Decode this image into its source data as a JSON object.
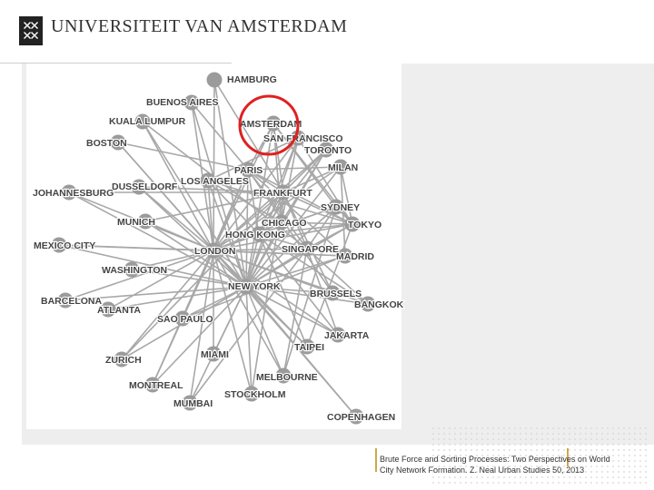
{
  "header": {
    "title": "UNIVERSITEIT VAN AMSTERDAM",
    "logo_icon": "uva-crest-icon"
  },
  "caption": {
    "line1": "Brute Force and Sorting Processes: Two Perspectives on World",
    "line2": "City Network Formation. Z. Neal Urban Studies 50, 2013"
  },
  "colors": {
    "node": "#9b9b9b",
    "edge": "#a8a8a8",
    "highlight": "#e02020",
    "panel": "#eeeeee",
    "accent": "#d2a64a"
  },
  "nodes": [
    {
      "id": "hamburg",
      "label": "HAMBURG"
    },
    {
      "id": "buenos",
      "label": "BUENOS AIRES"
    },
    {
      "id": "kuala",
      "label": "KUALA LUMPUR"
    },
    {
      "id": "amsterdam",
      "label": "AMSTERDAM"
    },
    {
      "id": "sanfran",
      "label": "SAN FRANCISCO"
    },
    {
      "id": "boston",
      "label": "BOSTON"
    },
    {
      "id": "toronto",
      "label": "TORONTO"
    },
    {
      "id": "milan",
      "label": "MILAN"
    },
    {
      "id": "paris",
      "label": "PARIS"
    },
    {
      "id": "dusseldorf",
      "label": "DUSSELDORF"
    },
    {
      "id": "losangeles",
      "label": "LOS ANGELES"
    },
    {
      "id": "johannesburg",
      "label": "JOHANNESBURG"
    },
    {
      "id": "frankfurt",
      "label": "FRANKFURT"
    },
    {
      "id": "sydney",
      "label": "SYDNEY"
    },
    {
      "id": "munich",
      "label": "MUNICH"
    },
    {
      "id": "chicago",
      "label": "CHICAGO"
    },
    {
      "id": "tokyo",
      "label": "TOKYO"
    },
    {
      "id": "hongkong",
      "label": "HONG KONG"
    },
    {
      "id": "mexico",
      "label": "MEXICO CITY"
    },
    {
      "id": "london",
      "label": "LONDON"
    },
    {
      "id": "singapore",
      "label": "SINGAPORE"
    },
    {
      "id": "madrid",
      "label": "MADRID"
    },
    {
      "id": "washington",
      "label": "WASHINGTON"
    },
    {
      "id": "newyork",
      "label": "NEW YORK"
    },
    {
      "id": "brussels",
      "label": "BRUSSELS"
    },
    {
      "id": "barcelona",
      "label": "BARCELONA"
    },
    {
      "id": "bangkok",
      "label": "BANGKOK"
    },
    {
      "id": "atlanta",
      "label": "ATLANTA"
    },
    {
      "id": "saopaulo",
      "label": "SAO PAULO"
    },
    {
      "id": "jakarta",
      "label": "JAKARTA"
    },
    {
      "id": "taipei",
      "label": "TAIPEI"
    },
    {
      "id": "miami",
      "label": "MIAMI"
    },
    {
      "id": "zurich",
      "label": "ZURICH"
    },
    {
      "id": "melbourne",
      "label": "MELBOURNE"
    },
    {
      "id": "montreal",
      "label": "MONTREAL"
    },
    {
      "id": "stockholm",
      "label": "STOCKHOLM"
    },
    {
      "id": "mumbai",
      "label": "MUMBAI"
    },
    {
      "id": "copenhagen",
      "label": "COPENHAGEN"
    }
  ],
  "edges": [
    [
      "hamburg",
      "london"
    ],
    [
      "hamburg",
      "frankfurt"
    ],
    [
      "hamburg",
      "newyork"
    ],
    [
      "buenos",
      "london"
    ],
    [
      "buenos",
      "newyork"
    ],
    [
      "buenos",
      "paris"
    ],
    [
      "kuala",
      "london"
    ],
    [
      "kuala",
      "newyork"
    ],
    [
      "kuala",
      "singapore"
    ],
    [
      "amsterdam",
      "london"
    ],
    [
      "amsterdam",
      "newyork"
    ],
    [
      "amsterdam",
      "paris"
    ],
    [
      "amsterdam",
      "frankfurt"
    ],
    [
      "amsterdam",
      "tokyo"
    ],
    [
      "amsterdam",
      "sydney"
    ],
    [
      "amsterdam",
      "chicago"
    ],
    [
      "sanfran",
      "london"
    ],
    [
      "sanfran",
      "newyork"
    ],
    [
      "sanfran",
      "tokyo"
    ],
    [
      "sanfran",
      "chicago"
    ],
    [
      "sanfran",
      "hongkong"
    ],
    [
      "sanfran",
      "losangeles"
    ],
    [
      "boston",
      "london"
    ],
    [
      "boston",
      "newyork"
    ],
    [
      "boston",
      "paris"
    ],
    [
      "toronto",
      "london"
    ],
    [
      "toronto",
      "newyork"
    ],
    [
      "toronto",
      "chicago"
    ],
    [
      "toronto",
      "frankfurt"
    ],
    [
      "toronto",
      "hongkong"
    ],
    [
      "milan",
      "london"
    ],
    [
      "milan",
      "newyork"
    ],
    [
      "milan",
      "paris"
    ],
    [
      "milan",
      "frankfurt"
    ],
    [
      "milan",
      "madrid"
    ],
    [
      "milan",
      "tokyo"
    ],
    [
      "paris",
      "london"
    ],
    [
      "paris",
      "newyork"
    ],
    [
      "paris",
      "frankfurt"
    ],
    [
      "paris",
      "tokyo"
    ],
    [
      "paris",
      "singapore"
    ],
    [
      "paris",
      "madrid"
    ],
    [
      "paris",
      "hongkong"
    ],
    [
      "dusseldorf",
      "london"
    ],
    [
      "dusseldorf",
      "frankfurt"
    ],
    [
      "dusseldorf",
      "newyork"
    ],
    [
      "losangeles",
      "london"
    ],
    [
      "losangeles",
      "newyork"
    ],
    [
      "losangeles",
      "tokyo"
    ],
    [
      "losangeles",
      "chicago"
    ],
    [
      "losangeles",
      "hongkong"
    ],
    [
      "johannesburg",
      "london"
    ],
    [
      "johannesburg",
      "newyork"
    ],
    [
      "johannesburg",
      "frankfurt"
    ],
    [
      "frankfurt",
      "london"
    ],
    [
      "frankfurt",
      "newyork"
    ],
    [
      "frankfurt",
      "tokyo"
    ],
    [
      "frankfurt",
      "singapore"
    ],
    [
      "frankfurt",
      "hongkong"
    ],
    [
      "frankfurt",
      "chicago"
    ],
    [
      "sydney",
      "london"
    ],
    [
      "sydney",
      "newyork"
    ],
    [
      "sydney",
      "tokyo"
    ],
    [
      "sydney",
      "singapore"
    ],
    [
      "sydney",
      "hongkong"
    ],
    [
      "munich",
      "london"
    ],
    [
      "munich",
      "frankfurt"
    ],
    [
      "munich",
      "newyork"
    ],
    [
      "chicago",
      "london"
    ],
    [
      "chicago",
      "newyork"
    ],
    [
      "chicago",
      "tokyo"
    ],
    [
      "chicago",
      "hongkong"
    ],
    [
      "tokyo",
      "london"
    ],
    [
      "tokyo",
      "newyork"
    ],
    [
      "tokyo",
      "hongkong"
    ],
    [
      "tokyo",
      "singapore"
    ],
    [
      "hongkong",
      "london"
    ],
    [
      "hongkong",
      "newyork"
    ],
    [
      "hongkong",
      "singapore"
    ],
    [
      "mexico",
      "london"
    ],
    [
      "mexico",
      "newyork"
    ],
    [
      "mexico",
      "madrid"
    ],
    [
      "london",
      "newyork"
    ],
    [
      "london",
      "singapore"
    ],
    [
      "london",
      "madrid"
    ],
    [
      "london",
      "brussels"
    ],
    [
      "singapore",
      "newyork"
    ],
    [
      "singapore",
      "jakarta"
    ],
    [
      "singapore",
      "bangkok"
    ],
    [
      "madrid",
      "newyork"
    ],
    [
      "madrid",
      "saopaulo"
    ],
    [
      "washington",
      "london"
    ],
    [
      "washington",
      "newyork"
    ],
    [
      "newyork",
      "brussels"
    ],
    [
      "newyork",
      "saopaulo"
    ],
    [
      "newyork",
      "miami"
    ],
    [
      "newyork",
      "mumbai"
    ],
    [
      "newyork",
      "stockholm"
    ],
    [
      "newyork",
      "zurich"
    ],
    [
      "newyork",
      "atlanta"
    ],
    [
      "newyork",
      "melbourne"
    ],
    [
      "newyork",
      "montreal"
    ],
    [
      "newyork",
      "taipei"
    ],
    [
      "newyork",
      "jakarta"
    ],
    [
      "newyork",
      "bangkok"
    ],
    [
      "barcelona",
      "london"
    ],
    [
      "barcelona",
      "newyork"
    ],
    [
      "atlanta",
      "london"
    ],
    [
      "saopaulo",
      "london"
    ],
    [
      "jakarta",
      "london"
    ],
    [
      "jakarta",
      "hongkong"
    ],
    [
      "taipei",
      "hongkong"
    ],
    [
      "taipei",
      "london"
    ],
    [
      "taipei",
      "tokyo"
    ],
    [
      "miami",
      "london"
    ],
    [
      "zurich",
      "london"
    ],
    [
      "zurich",
      "frankfurt"
    ],
    [
      "melbourne",
      "london"
    ],
    [
      "melbourne",
      "sydney"
    ],
    [
      "melbourne",
      "singapore"
    ],
    [
      "montreal",
      "london"
    ],
    [
      "montreal",
      "paris"
    ],
    [
      "stockholm",
      "london"
    ],
    [
      "stockholm",
      "frankfurt"
    ],
    [
      "mumbai",
      "london"
    ],
    [
      "mumbai",
      "singapore"
    ],
    [
      "copenhagen",
      "london"
    ],
    [
      "copenhagen",
      "newyork"
    ],
    [
      "brussels",
      "paris"
    ],
    [
      "brussels",
      "frankfurt"
    ],
    [
      "bangkok",
      "london"
    ],
    [
      "bangkok",
      "hongkong"
    ]
  ],
  "highlight": {
    "node": "amsterdam",
    "shape": "circle"
  }
}
